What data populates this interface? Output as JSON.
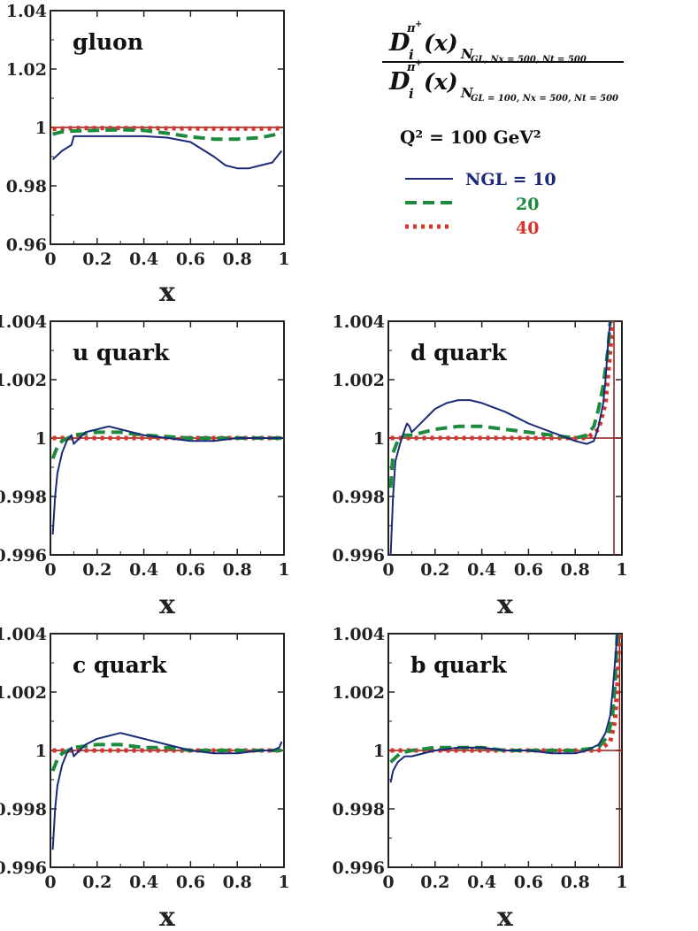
{
  "colors": {
    "ngl10": "#1b2a78",
    "ngl20": "#1e8a3e",
    "ngl40": "#d8342a",
    "reference": "#8b1a1a",
    "axis": "#222222"
  },
  "formula": {
    "D": "D",
    "sub_i": "i",
    "sup_pi": "π",
    "sup_plus": "+",
    "arg": "(x)",
    "num_subscript": "N",
    "num_subscript_rest": "GL, Nx = 500, Nt = 500",
    "den_subscript": "N",
    "den_subscript_rest": "GL = 100, Nx = 500, Nt = 500"
  },
  "legend": {
    "q2_label": "Q² = 100 GeV²",
    "title": "NGL = 10",
    "entries": [
      "10",
      "20",
      "40"
    ]
  },
  "chart_data": [
    {
      "type": "line",
      "title": "gluon",
      "xlabel": "x",
      "ylabel": "",
      "xlim": [
        0,
        1
      ],
      "ylim": [
        0.96,
        1.04
      ],
      "xticks": [
        "0",
        "0.2",
        "0.4",
        "0.6",
        "0.8",
        "1"
      ],
      "yticks": [
        "0.96",
        "0.98",
        "1",
        "1.02",
        "1.04"
      ],
      "yticks_values": [
        0.96,
        0.98,
        1.0,
        1.02,
        1.04
      ],
      "reference_line": 1,
      "series": [
        {
          "name": "NGL = 10",
          "x": [
            0.01,
            0.05,
            0.09,
            0.1,
            0.2,
            0.3,
            0.4,
            0.5,
            0.6,
            0.7,
            0.75,
            0.8,
            0.85,
            0.9,
            0.95,
            0.99
          ],
          "values": [
            0.989,
            0.992,
            0.994,
            0.997,
            0.997,
            0.997,
            0.997,
            0.9965,
            0.995,
            0.99,
            0.987,
            0.986,
            0.986,
            0.987,
            0.988,
            0.992
          ]
        },
        {
          "name": "20",
          "x": [
            0.01,
            0.05,
            0.1,
            0.2,
            0.3,
            0.4,
            0.5,
            0.6,
            0.7,
            0.8,
            0.9,
            0.99
          ],
          "values": [
            0.9977,
            0.9985,
            0.9988,
            0.999,
            0.9992,
            0.999,
            0.998,
            0.9968,
            0.996,
            0.996,
            0.9965,
            0.998
          ]
        },
        {
          "name": "40",
          "x": [
            0.01,
            0.1,
            0.3,
            0.5,
            0.7,
            0.9,
            0.99
          ],
          "values": [
            0.9995,
            0.9998,
            0.9998,
            0.9997,
            0.9996,
            0.9996,
            0.9997
          ]
        }
      ]
    },
    {
      "type": "line",
      "title": "u quark",
      "xlabel": "x",
      "ylabel": "",
      "xlim": [
        0,
        1
      ],
      "ylim": [
        0.996,
        1.004
      ],
      "xticks": [
        "0",
        "0.2",
        "0.4",
        "0.6",
        "0.8",
        "1"
      ],
      "yticks": [
        "0.996",
        "0.998",
        "1",
        "1.002",
        "1.004"
      ],
      "yticks_values": [
        0.996,
        0.998,
        1.0,
        1.002,
        1.004
      ],
      "reference_line": 1,
      "series": [
        {
          "name": "NGL = 10",
          "x": [
            0.01,
            0.02,
            0.03,
            0.05,
            0.07,
            0.09,
            0.1,
            0.15,
            0.2,
            0.25,
            0.3,
            0.4,
            0.5,
            0.6,
            0.7,
            0.8,
            0.9,
            1.0
          ],
          "values": [
            0.9967,
            0.998,
            0.9988,
            0.9995,
            0.9999,
            1.0001,
            0.9998,
            1.0002,
            1.0003,
            1.0004,
            1.0003,
            1.0001,
            1.0,
            0.9999,
            0.9999,
            1.0,
            1.0,
            1.0
          ]
        },
        {
          "name": "20",
          "x": [
            0.01,
            0.03,
            0.05,
            0.1,
            0.2,
            0.3,
            0.4,
            0.6,
            0.8,
            1.0
          ],
          "values": [
            0.9993,
            0.9997,
            0.9999,
            1.0001,
            1.0002,
            1.0002,
            1.0001,
            1.0,
            1.0,
            1.0
          ]
        },
        {
          "name": "40",
          "x": [
            0.01,
            0.2,
            0.4,
            0.6,
            0.8,
            1.0
          ],
          "values": [
            1.0,
            1.0,
            1.0,
            1.0,
            1.0,
            1.0
          ]
        }
      ]
    },
    {
      "type": "line",
      "title": "d quark",
      "xlabel": "x",
      "ylabel": "",
      "xlim": [
        0,
        1
      ],
      "ylim": [
        0.996,
        1.004
      ],
      "xticks": [
        "0",
        "0.2",
        "0.4",
        "0.6",
        "0.8",
        "1"
      ],
      "yticks": [
        "0.996",
        "0.998",
        "1",
        "1.002",
        "1.004"
      ],
      "yticks_values": [
        0.996,
        0.998,
        1.0,
        1.002,
        1.004
      ],
      "reference_line": 1,
      "vertical_line": 0.966,
      "series": [
        {
          "name": "NGL = 10",
          "x": [
            0.01,
            0.02,
            0.03,
            0.05,
            0.07,
            0.08,
            0.09,
            0.1,
            0.15,
            0.2,
            0.25,
            0.3,
            0.35,
            0.4,
            0.5,
            0.6,
            0.7,
            0.8,
            0.85,
            0.88,
            0.9,
            0.92,
            0.93,
            0.94,
            0.95
          ],
          "values": [
            0.996,
            0.998,
            0.9992,
            0.9998,
            1.0003,
            1.0005,
            1.0004,
            1.0002,
            1.0006,
            1.001,
            1.0012,
            1.0013,
            1.0013,
            1.0012,
            1.0009,
            1.0005,
            1.0002,
            0.9999,
            0.9998,
            0.9999,
            1.0004,
            1.0012,
            1.002,
            1.0032,
            1.004
          ]
        },
        {
          "name": "20",
          "x": [
            0.01,
            0.02,
            0.04,
            0.07,
            0.1,
            0.15,
            0.2,
            0.3,
            0.35,
            0.4,
            0.5,
            0.6,
            0.7,
            0.8,
            0.85,
            0.88,
            0.9,
            0.92,
            0.94,
            0.95
          ],
          "values": [
            0.9983,
            0.9995,
            0.9999,
            1.0001,
            1.0001,
            1.0002,
            1.0003,
            1.0004,
            1.0004,
            1.0004,
            1.0003,
            1.0002,
            1.0001,
            1.0,
            1.0001,
            1.0004,
            1.001,
            1.0018,
            1.003,
            1.004
          ]
        },
        {
          "name": "40",
          "x": [
            0.01,
            0.1,
            0.3,
            0.5,
            0.7,
            0.85,
            0.9,
            0.93,
            0.95,
            0.96
          ],
          "values": [
            1.0,
            1.0,
            1.0,
            1.0,
            1.0,
            1.0,
            1.0003,
            1.0012,
            1.003,
            1.004
          ]
        }
      ]
    },
    {
      "type": "line",
      "title": "c quark",
      "xlabel": "x",
      "ylabel": "",
      "xlim": [
        0,
        1
      ],
      "ylim": [
        0.996,
        1.004
      ],
      "xticks": [
        "0",
        "0.2",
        "0.4",
        "0.6",
        "0.8",
        "1"
      ],
      "yticks": [
        "0.996",
        "0.998",
        "1",
        "1.002",
        "1.004"
      ],
      "yticks_values": [
        0.996,
        0.998,
        1.0,
        1.002,
        1.004
      ],
      "reference_line": 1,
      "series": [
        {
          "name": "NGL = 10",
          "x": [
            0.01,
            0.02,
            0.03,
            0.05,
            0.07,
            0.09,
            0.1,
            0.15,
            0.2,
            0.25,
            0.3,
            0.35,
            0.4,
            0.5,
            0.6,
            0.7,
            0.8,
            0.9,
            0.95,
            0.98,
            0.99
          ],
          "values": [
            0.9966,
            0.998,
            0.9988,
            0.9995,
            0.9999,
            1.0001,
            0.9998,
            1.0002,
            1.0004,
            1.0005,
            1.0006,
            1.0005,
            1.0004,
            1.0002,
            1.0,
            0.9999,
            0.9999,
            1.0,
            1.0,
            1.0001,
            1.0003
          ]
        },
        {
          "name": "20",
          "x": [
            0.01,
            0.03,
            0.05,
            0.1,
            0.2,
            0.3,
            0.4,
            0.5,
            0.6,
            0.8,
            1.0
          ],
          "values": [
            0.9993,
            0.9997,
            0.9999,
            1.0001,
            1.0002,
            1.0002,
            1.0001,
            1.0001,
            1.0,
            1.0,
            1.0
          ]
        },
        {
          "name": "40",
          "x": [
            0.01,
            0.2,
            0.4,
            0.6,
            0.8,
            1.0
          ],
          "values": [
            1.0,
            1.0,
            1.0,
            1.0,
            1.0,
            1.0
          ]
        }
      ]
    },
    {
      "type": "line",
      "title": "b quark",
      "xlabel": "x",
      "ylabel": "",
      "xlim": [
        0,
        1
      ],
      "ylim": [
        0.996,
        1.004
      ],
      "xticks": [
        "0",
        "0.2",
        "0.4",
        "0.6",
        "0.8",
        "1"
      ],
      "yticks": [
        "0.996",
        "0.998",
        "1",
        "1.002",
        "1.004"
      ],
      "yticks_values": [
        0.996,
        0.998,
        1.0,
        1.002,
        1.004
      ],
      "reference_line": 1,
      "vertical_line": 0.99,
      "series": [
        {
          "name": "NGL = 10",
          "x": [
            0.01,
            0.02,
            0.04,
            0.07,
            0.1,
            0.2,
            0.3,
            0.35,
            0.4,
            0.5,
            0.6,
            0.7,
            0.8,
            0.85,
            0.9,
            0.93,
            0.95,
            0.96,
            0.97,
            0.98
          ],
          "values": [
            0.9989,
            0.9993,
            0.9996,
            0.9998,
            0.9998,
            1.0,
            1.0001,
            1.0001,
            1.0001,
            1.0,
            1.0,
            0.9999,
            0.9999,
            1.0,
            1.0002,
            1.0006,
            1.0012,
            1.002,
            1.003,
            1.004
          ]
        },
        {
          "name": "20",
          "x": [
            0.01,
            0.05,
            0.1,
            0.2,
            0.3,
            0.4,
            0.5,
            0.6,
            0.7,
            0.8,
            0.9,
            0.94,
            0.96,
            0.97,
            0.98
          ],
          "values": [
            0.9996,
            0.9999,
            1.0,
            1.0001,
            1.0001,
            1.0001,
            1.0,
            1.0,
            1.0,
            1.0,
            1.0001,
            1.0005,
            1.0012,
            1.0022,
            1.004
          ]
        },
        {
          "name": "40",
          "x": [
            0.01,
            0.2,
            0.4,
            0.6,
            0.8,
            0.9,
            0.95,
            0.97,
            0.98,
            0.99
          ],
          "values": [
            1.0,
            1.0,
            1.0,
            1.0,
            1.0,
            1.0,
            1.0003,
            1.001,
            1.0022,
            1.004
          ]
        }
      ]
    }
  ]
}
